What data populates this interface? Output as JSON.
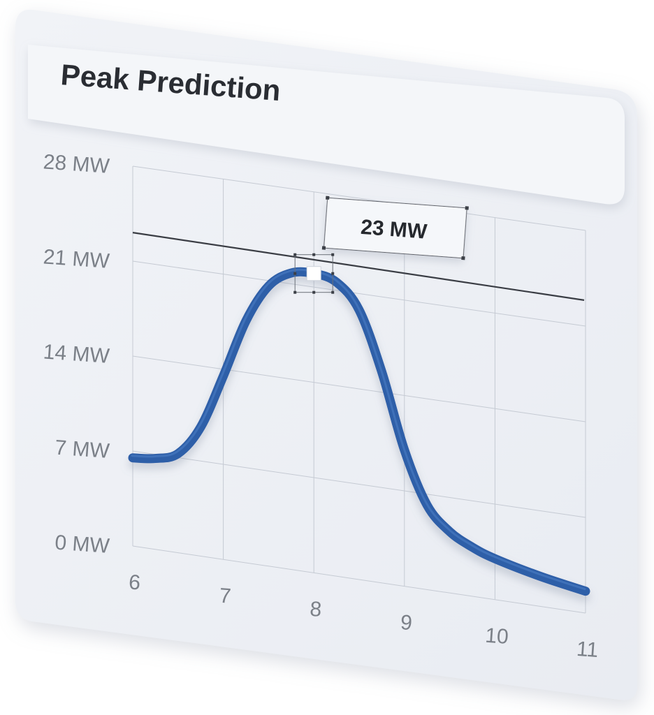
{
  "colors": {
    "background": "#ffffff",
    "card": "#eef1f6",
    "header": "#f3f5f9",
    "grid": "#c5cad3",
    "series": "#2f5ea8",
    "threshold": "#3a3d44",
    "tick_text": "#7b8088",
    "title_text": "#2a2d33"
  },
  "card": {
    "title": "Peak Prediction"
  },
  "chart_data": {
    "type": "line",
    "x": [
      6,
      7,
      8,
      9,
      10,
      11
    ],
    "ylim": [
      0,
      28
    ],
    "x_tick_labels": [
      "6",
      "7",
      "8",
      "9",
      "10",
      "11"
    ],
    "y_tick_labels": [
      "0 MW",
      "7 MW",
      "14 MW",
      "21 MW",
      "28 MW"
    ],
    "y_ticks": [
      0,
      7,
      14,
      21,
      28
    ],
    "grid": true,
    "series": [
      {
        "points": [
          [
            6.0,
            6.5
          ],
          [
            6.25,
            6.7
          ],
          [
            6.5,
            7.3
          ],
          [
            6.75,
            9.5
          ],
          [
            7.0,
            13.5
          ],
          [
            7.25,
            17.8
          ],
          [
            7.5,
            20.6
          ],
          [
            7.75,
            21.8
          ],
          [
            8.0,
            22.0
          ],
          [
            8.25,
            21.6
          ],
          [
            8.5,
            19.8
          ],
          [
            8.75,
            15.5
          ],
          [
            9.0,
            10.0
          ],
          [
            9.25,
            6.2
          ],
          [
            9.5,
            4.5
          ],
          [
            9.75,
            3.6
          ],
          [
            10.0,
            3.0
          ],
          [
            10.5,
            2.2
          ],
          [
            11.0,
            1.6
          ]
        ]
      }
    ],
    "threshold": {
      "value": 23,
      "label": "23 MW"
    },
    "marker": {
      "x": 8,
      "y": 22
    }
  }
}
